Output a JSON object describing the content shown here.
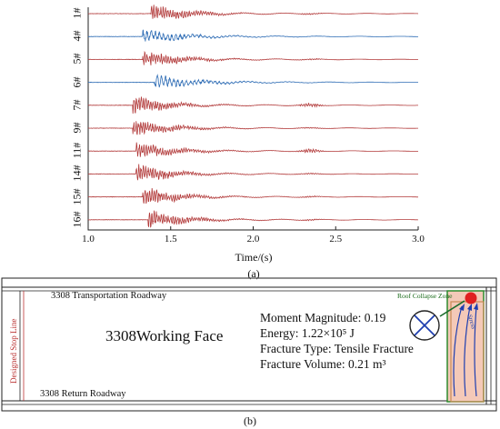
{
  "panel_a": {
    "caption": "(a)",
    "xlabel": "Time/(s)",
    "x_ticks": [
      "1.0",
      "1.5",
      "2.0",
      "2.5",
      "3.0"
    ],
    "x_range": [
      1.0,
      3.0
    ],
    "traces": [
      {
        "label": "1#",
        "color": "#b23a3a",
        "onset": 1.38,
        "type": "red"
      },
      {
        "label": "4#",
        "color": "#2f6db5",
        "onset": 1.33,
        "type": "blue"
      },
      {
        "label": "5#",
        "color": "#b23a3a",
        "onset": 1.33,
        "type": "red"
      },
      {
        "label": "6#",
        "color": "#2f6db5",
        "onset": 1.4,
        "type": "blue"
      },
      {
        "label": "7#",
        "color": "#b23a3a",
        "onset": 1.27,
        "type": "red"
      },
      {
        "label": "9#",
        "color": "#b23a3a",
        "onset": 1.27,
        "type": "red"
      },
      {
        "label": "11#",
        "color": "#b23a3a",
        "onset": 1.29,
        "type": "red"
      },
      {
        "label": "14#",
        "color": "#b23a3a",
        "onset": 1.29,
        "type": "red"
      },
      {
        "label": "15#",
        "color": "#b23a3a",
        "onset": 1.33,
        "type": "red"
      },
      {
        "label": "16#",
        "color": "#b23a3a",
        "onset": 1.36,
        "type": "red"
      }
    ]
  },
  "panel_b": {
    "caption": "(b)",
    "transport_roadway": "3308 Transportation Roadway",
    "return_roadway": "3308 Return Roadway",
    "working_face": "3308Working Face",
    "stop_line": "Designed Stop Line",
    "collapse_zone": "Roof Collapse Zone",
    "stress_label": "Stress",
    "info": {
      "moment_magnitude": "Moment Magnitude: 0.19",
      "energy": "Energy: 1.22×10⁵ J",
      "fracture_type": "Fracture Type: Tensile Fracture",
      "fracture_volume": "Fracture Volume: 0.21 m³"
    },
    "colors": {
      "collapse_fill": "#f4c9b8",
      "collapse_border": "#2e8b2e",
      "source_dot": "#e02020",
      "stress_arrow": "#1f3fb0"
    }
  }
}
